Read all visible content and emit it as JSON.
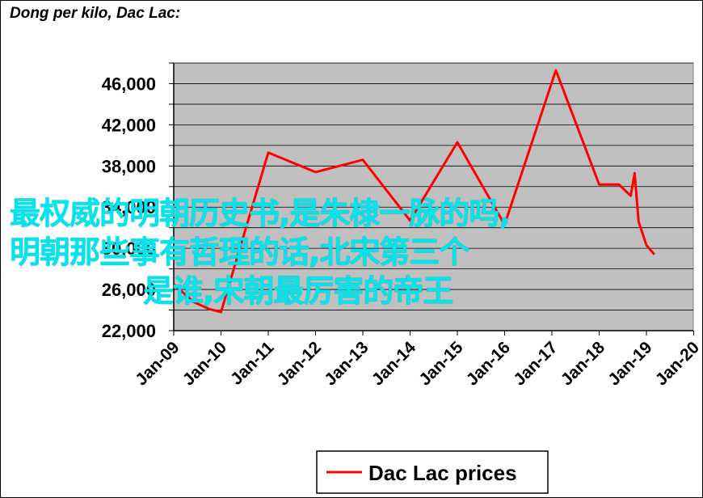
{
  "chart_data": {
    "type": "line",
    "title": "Dong per kilo, Dac Lac:",
    "xlabel": "",
    "ylabel": "",
    "ylim": [
      22000,
      48000
    ],
    "y_ticks": [
      "22,000",
      "26,000",
      "30,000",
      "34,000",
      "38,000",
      "42,000",
      "46,000"
    ],
    "y_tick_values": [
      22000,
      26000,
      30000,
      34000,
      38000,
      42000,
      46000
    ],
    "x_ticks": [
      "Jan-09",
      "Jan-10",
      "Jan-11",
      "Jan-12",
      "Jan-13",
      "Jan-14",
      "Jan-15",
      "Jan-16",
      "Jan-17",
      "Jan-18",
      "Jan-19",
      "Jan-20"
    ],
    "grid": true,
    "legend_position": "bottom",
    "series": [
      {
        "name": "Dac Lac prices",
        "color": "#ff0000",
        "x": [
          "2009-01",
          "2009-06",
          "2009-10",
          "2010-01",
          "2011-01",
          "2012-01",
          "2013-01",
          "2014-01",
          "2015-01",
          "2016-01",
          "2017-02",
          "2018-01",
          "2018-06",
          "2018-09",
          "2018-10",
          "2018-11",
          "2019-01",
          "2019-03"
        ],
        "values": [
          26500,
          24800,
          24100,
          23800,
          39300,
          37400,
          38600,
          32700,
          40300,
          32300,
          47300,
          36200,
          36200,
          35100,
          37300,
          32600,
          30300,
          29400
        ]
      }
    ]
  },
  "overlay_text": {
    "line1": "最权威的明朝历史书,是朱棣一脉的吗,",
    "line2": "明朝那些事有哲理的话,北宋第三个",
    "line3": "是谁,宋朝最厉害的帝王"
  },
  "colors": {
    "plot_bg": "#c0c0c0",
    "line": "#ff0000",
    "overlay_text": "#00e5ee"
  }
}
